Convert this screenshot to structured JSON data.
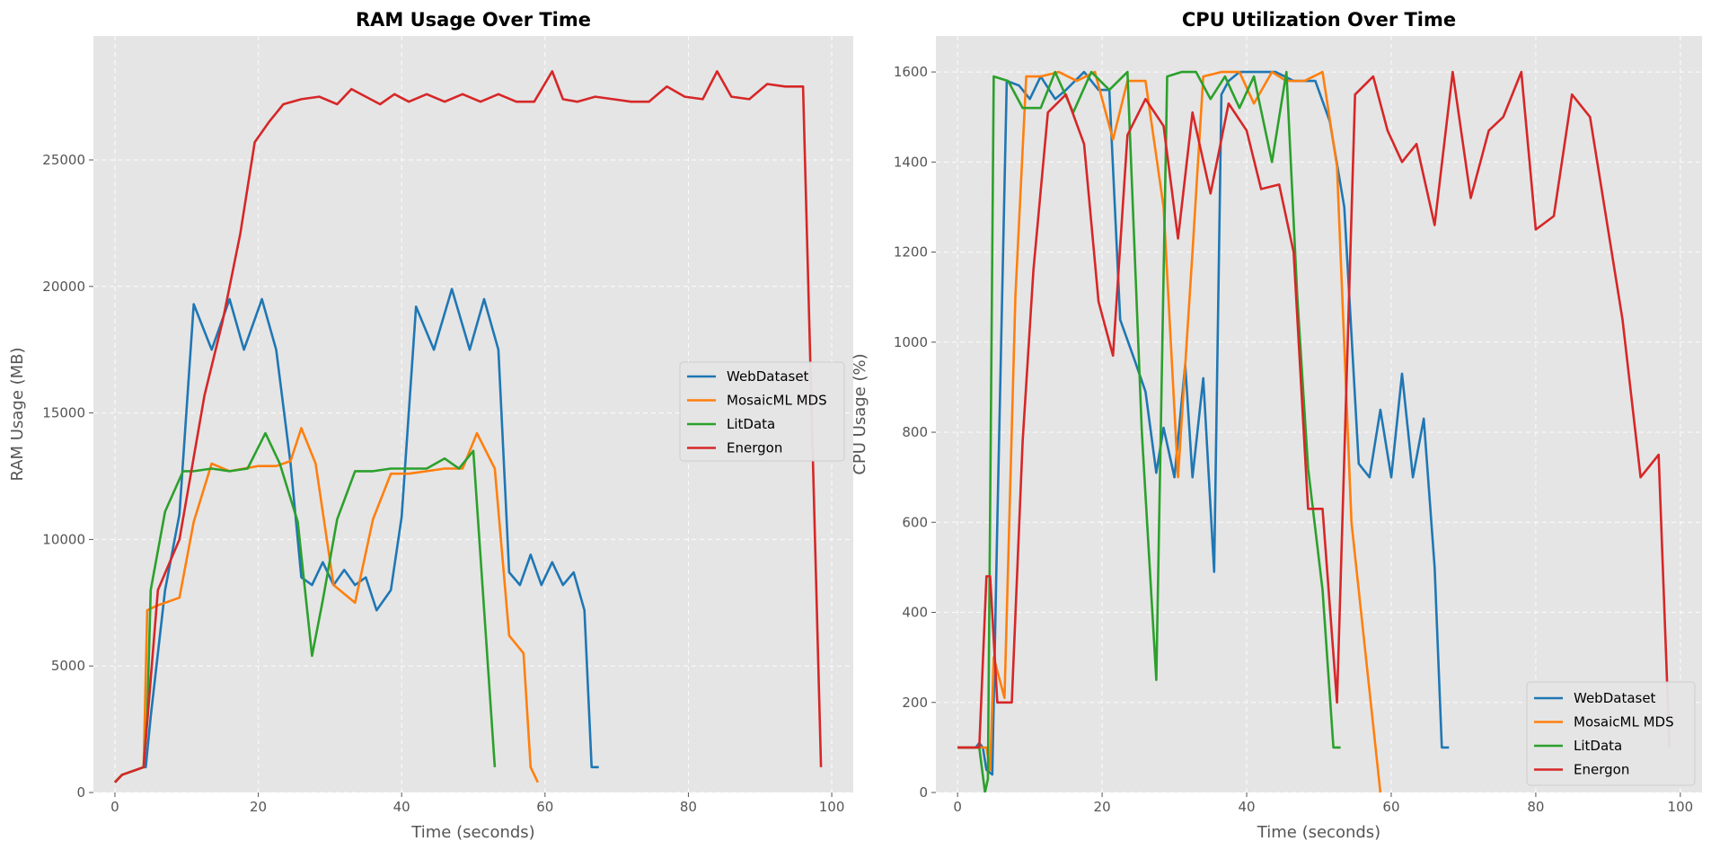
{
  "colors": {
    "background": "#ffffff",
    "plot_bg": "#e5e5e5",
    "grid": "#ffffff",
    "tick_text": "#555555",
    "label_text": "#555555",
    "title_text": "#000000",
    "WebDataset": "#1f77b4",
    "MosaicML MDS": "#ff7f0e",
    "LitData": "#2ca02c",
    "Energon": "#d62728"
  },
  "chart_data": [
    {
      "type": "line",
      "title": "RAM Usage Over Time",
      "xlabel": "Time (seconds)",
      "ylabel": "RAM Usage (MB)",
      "xlim": [
        -3,
        103
      ],
      "ylim": [
        0,
        29900
      ],
      "xticks": [
        0,
        20,
        40,
        60,
        80,
        100
      ],
      "yticks": [
        0,
        5000,
        10000,
        15000,
        20000,
        25000
      ],
      "grid": true,
      "legend_position": "center-right",
      "series": [
        {
          "name": "WebDataset",
          "x": [
            0,
            1,
            3,
            4,
            4.3,
            5,
            7,
            9,
            11,
            13.5,
            16,
            18,
            20.5,
            22.5,
            24.5,
            26,
            27.5,
            29,
            30.5,
            32,
            33.5,
            35,
            36.5,
            38.5,
            40,
            42,
            44.5,
            47,
            49.5,
            51.5,
            53.5,
            55,
            56.5,
            58,
            59.5,
            61,
            62.5,
            64,
            65.5,
            66.5,
            67.5
          ],
          "y": [
            400,
            700,
            900,
            1000,
            1000,
            3000,
            8000,
            11000,
            19300,
            17500,
            19500,
            17500,
            19500,
            17500,
            13000,
            8500,
            8200,
            9100,
            8200,
            8800,
            8200,
            8500,
            7200,
            8000,
            10900,
            19200,
            17500,
            19900,
            17500,
            19500,
            17500,
            8700,
            8200,
            9400,
            8200,
            9100,
            8200,
            8700,
            7200,
            1000,
            1000
          ]
        },
        {
          "name": "MosaicML MDS",
          "x": [
            0,
            1,
            3,
            4,
            4.5,
            6,
            9,
            11,
            13.5,
            16,
            18,
            20,
            22.5,
            24.5,
            26,
            28,
            30.5,
            33.5,
            36,
            38.5,
            41,
            43.5,
            46,
            48.5,
            50.5,
            53,
            55,
            57,
            58,
            59
          ],
          "y": [
            400,
            700,
            900,
            1000,
            7200,
            7400,
            7700,
            10700,
            13000,
            12700,
            12800,
            12900,
            12900,
            13100,
            14400,
            13000,
            8200,
            7500,
            10800,
            12600,
            12600,
            12700,
            12800,
            12800,
            14200,
            12800,
            6200,
            5500,
            1000,
            400
          ]
        },
        {
          "name": "LitData",
          "x": [
            0,
            1,
            3,
            4,
            4.5,
            5,
            7,
            9.5,
            11,
            13.5,
            16,
            18.5,
            21,
            23,
            25.5,
            27.5,
            29,
            31,
            33.5,
            36,
            38.5,
            41,
            43.5,
            46,
            48,
            50,
            53
          ],
          "y": [
            400,
            700,
            900,
            1000,
            3000,
            8000,
            11100,
            12700,
            12700,
            12800,
            12700,
            12800,
            14200,
            13000,
            10700,
            5400,
            7600,
            10800,
            12700,
            12700,
            12800,
            12800,
            12800,
            13200,
            12800,
            13500,
            1000
          ]
        },
        {
          "name": "Energon",
          "x": [
            0,
            1,
            3,
            4,
            6,
            9,
            12.5,
            15,
            17.5,
            19.5,
            21.5,
            23.5,
            26,
            28.5,
            31,
            33,
            35,
            37,
            39,
            41,
            43.5,
            46,
            48.5,
            51,
            53.5,
            56,
            58.5,
            61,
            62.5,
            64.5,
            67,
            69.5,
            72,
            74.5,
            77,
            79.5,
            82,
            84,
            86,
            88.5,
            91,
            93.5,
            96,
            98.5
          ],
          "y": [
            400,
            700,
            900,
            1000,
            8000,
            10000,
            15700,
            18600,
            22100,
            25700,
            26500,
            27200,
            27400,
            27500,
            27200,
            27800,
            27500,
            27200,
            27600,
            27300,
            27600,
            27300,
            27600,
            27300,
            27600,
            27300,
            27300,
            28500,
            27400,
            27300,
            27500,
            27400,
            27300,
            27300,
            27900,
            27500,
            27400,
            28500,
            27500,
            27400,
            28000,
            27900,
            27900,
            1000
          ]
        }
      ]
    },
    {
      "type": "line",
      "title": "CPU Utilization Over Time",
      "xlabel": "Time (seconds)",
      "ylabel": "CPU Usage (%)",
      "xlim": [
        -3,
        103
      ],
      "ylim": [
        0,
        1680
      ],
      "xticks": [
        0,
        20,
        40,
        60,
        80,
        100
      ],
      "yticks": [
        0,
        200,
        400,
        600,
        800,
        1000,
        1200,
        1400,
        1600
      ],
      "grid": true,
      "legend_position": "bottom-right",
      "series": [
        {
          "name": "WebDataset",
          "x": [
            0,
            1,
            2.5,
            3,
            3.5,
            4,
            4.8,
            5.5,
            6.8,
            8.5,
            10,
            11.5,
            13.5,
            15,
            17.5,
            19.5,
            21,
            22.5,
            24.5,
            26,
            27.5,
            28.5,
            30,
            31.5,
            32.5,
            34,
            35.5,
            36.5,
            37.5,
            39,
            40.5,
            42,
            44,
            46.5,
            49.5,
            51.5,
            53.5,
            55.5,
            57,
            58.5,
            60,
            61.5,
            63,
            64.5,
            66,
            67,
            68
          ],
          "y": [
            100,
            100,
            100,
            110,
            100,
            50,
            40,
            600,
            1580,
            1570,
            1540,
            1590,
            1540,
            1560,
            1600,
            1560,
            1560,
            1050,
            960,
            890,
            710,
            810,
            700,
            950,
            700,
            920,
            490,
            1550,
            1580,
            1600,
            1600,
            1600,
            1600,
            1580,
            1580,
            1490,
            1300,
            730,
            700,
            850,
            700,
            930,
            700,
            830,
            500,
            100,
            100
          ]
        },
        {
          "name": "MosaicML MDS",
          "x": [
            0,
            1,
            3,
            4,
            4.5,
            5,
            6.5,
            8,
            9.5,
            11.5,
            14,
            16.5,
            19,
            21.5,
            23.5,
            26,
            28.5,
            30.5,
            32.5,
            34,
            36.5,
            39,
            41,
            43.5,
            45.5,
            48,
            50.5,
            52.5,
            54.5,
            56.5,
            58.5
          ],
          "y": [
            100,
            100,
            100,
            100,
            50,
            300,
            210,
            1100,
            1590,
            1590,
            1600,
            1580,
            1600,
            1450,
            1580,
            1580,
            1300,
            700,
            1200,
            1590,
            1600,
            1600,
            1530,
            1600,
            1580,
            1580,
            1600,
            1390,
            600,
            300,
            0
          ]
        },
        {
          "name": "LitData",
          "x": [
            0,
            1,
            3,
            3.8,
            4.2,
            5,
            7,
            9,
            11.5,
            13.5,
            16,
            18.5,
            21,
            23.5,
            25.5,
            27.5,
            29,
            31,
            33,
            35,
            37,
            39,
            41,
            43.5,
            45.5,
            47,
            48.5,
            50.5,
            52,
            53
          ],
          "y": [
            100,
            100,
            100,
            0,
            30,
            1590,
            1580,
            1520,
            1520,
            1600,
            1510,
            1600,
            1560,
            1600,
            800,
            250,
            1590,
            1600,
            1600,
            1540,
            1590,
            1520,
            1590,
            1400,
            1600,
            1100,
            720,
            450,
            100,
            100
          ]
        },
        {
          "name": "Energon",
          "x": [
            0,
            1,
            3,
            4,
            4.5,
            5.5,
            7.5,
            9,
            10.5,
            12.5,
            15,
            17.5,
            19.5,
            21.5,
            23.5,
            26,
            28.5,
            30.5,
            32.5,
            35,
            37.5,
            40,
            42,
            44.5,
            46.5,
            48.5,
            50.5,
            52.5,
            55,
            57.5,
            59.5,
            61.5,
            63.5,
            66,
            68.5,
            71,
            73.5,
            75.5,
            78,
            80,
            82.5,
            85,
            87.5,
            89.5,
            92,
            94.5,
            97,
            98.5
          ],
          "y": [
            100,
            100,
            100,
            480,
            480,
            200,
            200,
            780,
            1160,
            1510,
            1550,
            1440,
            1090,
            970,
            1460,
            1540,
            1480,
            1230,
            1510,
            1330,
            1530,
            1470,
            1340,
            1350,
            1200,
            630,
            630,
            200,
            1550,
            1590,
            1470,
            1400,
            1440,
            1260,
            1600,
            1320,
            1470,
            1500,
            1600,
            1250,
            1280,
            1550,
            1500,
            1300,
            1050,
            700,
            750,
            100
          ]
        }
      ]
    }
  ]
}
